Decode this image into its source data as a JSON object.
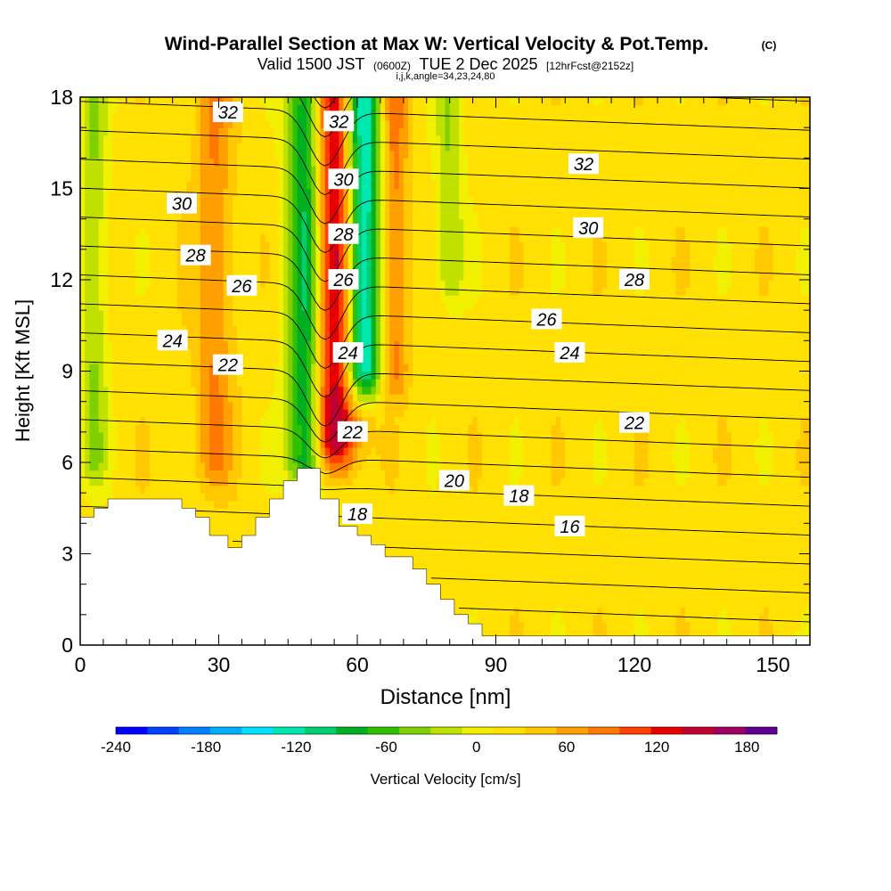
{
  "chart_data": {
    "type": "heatmap",
    "title": "Wind-Parallel Section at Max W: Vertical Velocity & Pot.Temp.",
    "title_mark": "(C)",
    "subtitle": {
      "valid": "Valid 1500 JST",
      "utc": "(0600Z)",
      "date": "TUE 2 Dec 2025",
      "forecast": "[12hrFcst@2152z]"
    },
    "section_info": "i,j,k,angle=34,23,24,80",
    "xlabel": "Distance [nm]",
    "ylabel": "Height [Kft MSL]",
    "xlim": [
      0,
      158
    ],
    "ylim": [
      0,
      18
    ],
    "x_ticks": [
      0,
      30,
      60,
      90,
      120,
      150
    ],
    "y_ticks": [
      0,
      3,
      6,
      9,
      12,
      15,
      18
    ],
    "x_minor_step": 5,
    "y_minor_step": 1,
    "colorbar": {
      "label": "Vertical Velocity [cm/s]",
      "min": -240,
      "max": 200,
      "step": 20,
      "tick_labels": [
        -240,
        -180,
        -120,
        -60,
        0,
        60,
        120,
        180
      ],
      "colors": [
        "#0000ff",
        "#0040ff",
        "#0080ff",
        "#00b0ff",
        "#00e0ff",
        "#00e8b0",
        "#00d070",
        "#00b020",
        "#30c000",
        "#80d000",
        "#c0e000",
        "#f0f000",
        "#ffe000",
        "#ffc800",
        "#ffa000",
        "#ff7800",
        "#ff4000",
        "#e80000",
        "#c00030",
        "#a00060",
        "#600090"
      ]
    },
    "velocity_field_cm_s": {
      "background": 10,
      "bands": [
        {
          "name": "downdraft-upper-left",
          "x_center": 3,
          "width": 3,
          "y_range": [
            6,
            18
          ],
          "value": -50
        },
        {
          "name": "updraft-left",
          "x_center": 29,
          "width": 4,
          "y_range": [
            6,
            18
          ],
          "value": 50
        },
        {
          "name": "downdraft-west",
          "x_center": 49,
          "width": 4,
          "y_range": [
            6,
            18
          ],
          "value": -130
        },
        {
          "name": "updraft-core",
          "x_center": 55,
          "width": 5,
          "y_range": [
            6.5,
            18
          ],
          "value": 140
        },
        {
          "name": "downdraft-east",
          "x_center": 61,
          "width": 4,
          "y_range": [
            9,
            18
          ],
          "value": -170
        },
        {
          "name": "updraft-east",
          "x_center": 68,
          "width": 3,
          "y_range": [
            9,
            18
          ],
          "value": 60
        },
        {
          "name": "downdraft-far-east",
          "x_center": 80,
          "width": 3,
          "y_range": [
            12,
            18
          ],
          "value": -50
        }
      ]
    },
    "terrain_kft": {
      "x": [
        0,
        3,
        3,
        6,
        6,
        12,
        12,
        22,
        22,
        25,
        25,
        28,
        28,
        32,
        32,
        35,
        35,
        38,
        38,
        41,
        41,
        44,
        44,
        47,
        47,
        52,
        52,
        56,
        56,
        60,
        60,
        63,
        63,
        66,
        66,
        72,
        72,
        75,
        75,
        78,
        78,
        81,
        81,
        84,
        84,
        87,
        87,
        158
      ],
      "height": [
        4.2,
        4.2,
        4.5,
        4.5,
        4.8,
        4.8,
        4.8,
        4.8,
        4.5,
        4.5,
        4.2,
        4.2,
        3.6,
        3.6,
        3.2,
        3.2,
        3.6,
        3.6,
        4.2,
        4.2,
        4.8,
        4.8,
        5.4,
        5.4,
        5.8,
        5.8,
        4.8,
        4.8,
        3.9,
        3.9,
        3.6,
        3.6,
        3.3,
        3.3,
        2.9,
        2.9,
        2.5,
        2.5,
        2.0,
        2.0,
        1.5,
        1.5,
        1.0,
        1.0,
        0.7,
        0.7,
        0.3,
        0.3
      ]
    },
    "potential_temperature_contours": {
      "field": "potential temperature",
      "labels": [
        {
          "x": 32,
          "y": 17.5,
          "text": "32"
        },
        {
          "x": 56,
          "y": 17.2,
          "text": "32"
        },
        {
          "x": 109,
          "y": 15.8,
          "text": "32"
        },
        {
          "x": 22,
          "y": 14.5,
          "text": "30"
        },
        {
          "x": 57,
          "y": 15.3,
          "text": "30"
        },
        {
          "x": 110,
          "y": 13.7,
          "text": "30"
        },
        {
          "x": 25,
          "y": 12.8,
          "text": "28"
        },
        {
          "x": 57,
          "y": 13.5,
          "text": "28"
        },
        {
          "x": 120,
          "y": 12.0,
          "text": "28"
        },
        {
          "x": 35,
          "y": 11.8,
          "text": "26"
        },
        {
          "x": 57,
          "y": 12.0,
          "text": "26"
        },
        {
          "x": 101,
          "y": 10.7,
          "text": "26"
        },
        {
          "x": 20,
          "y": 10.0,
          "text": "24"
        },
        {
          "x": 58,
          "y": 9.6,
          "text": "24"
        },
        {
          "x": 106,
          "y": 9.6,
          "text": "24"
        },
        {
          "x": 32,
          "y": 9.2,
          "text": "22"
        },
        {
          "x": 59,
          "y": 7.0,
          "text": "22"
        },
        {
          "x": 120,
          "y": 7.3,
          "text": "22"
        },
        {
          "x": 60,
          "y": 4.3,
          "text": "18"
        },
        {
          "x": 81,
          "y": 5.4,
          "text": "20"
        },
        {
          "x": 95,
          "y": 4.9,
          "text": "18"
        },
        {
          "x": 106,
          "y": 3.9,
          "text": "16"
        }
      ]
    },
    "grid": false,
    "legend": "colorbar-bottom"
  }
}
